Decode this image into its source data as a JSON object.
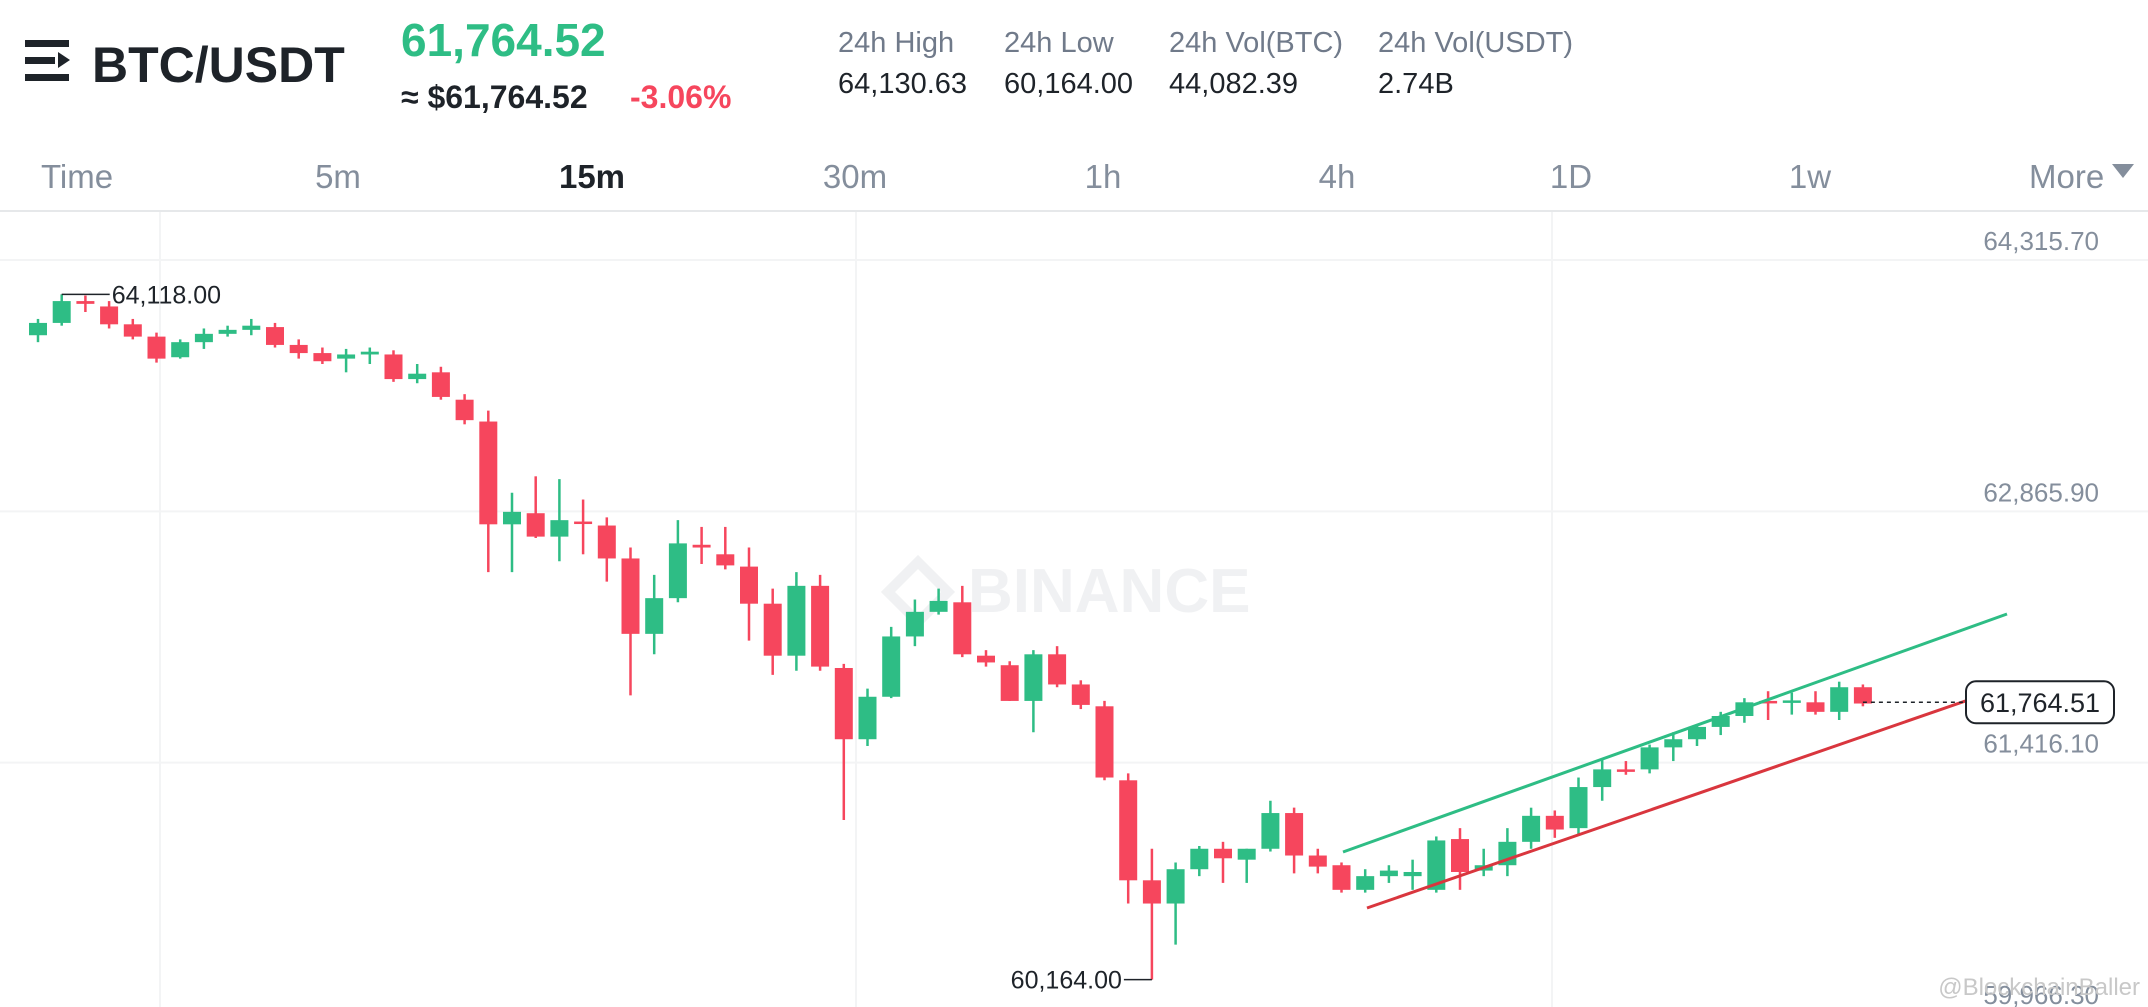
{
  "header": {
    "pair": "BTC/USDT",
    "price": "61,764.52",
    "approx": "≈ $61,764.52",
    "change": "-3.06%",
    "stats": [
      {
        "label": "24h High",
        "value": "64,130.63"
      },
      {
        "label": "24h Low",
        "value": "60,164.00"
      },
      {
        "label": "24h Vol(BTC)",
        "value": "44,082.39"
      },
      {
        "label": "24h Vol(USDT)",
        "value": "2.74B"
      }
    ]
  },
  "tabs": [
    "Time",
    "5m",
    "15m",
    "30m",
    "1h",
    "4h",
    "1D",
    "1w",
    "More"
  ],
  "active_tab": "15m",
  "watermark": "BINANCE",
  "credit": "@BlockchainBaller",
  "chart_data": {
    "type": "candlestick",
    "open": [
      63882,
      63953,
      64079,
      64048,
      63945,
      63874,
      63755,
      63842,
      63890,
      63913,
      63929,
      63826,
      63779,
      63747,
      63771,
      63771,
      63629,
      63668,
      63510,
      63384,
      62791,
      62855,
      62720,
      62807,
      62784,
      62594,
      62159,
      62365,
      62673,
      62618,
      62547,
      62333,
      62033,
      62436,
      61962,
      61551,
      61796,
      62144,
      62286,
      62341,
      62033,
      61978,
      61772,
      62041,
      61867,
      61741,
      61314,
      60737,
      60603,
      60801,
      60919,
      60856,
      60919,
      61125,
      60880,
      60824,
      60682,
      60761,
      60761,
      60682,
      60975,
      60793,
      60824,
      60959,
      61109,
      61038,
      61275,
      61377,
      61377,
      61504,
      61551,
      61622,
      61685,
      61772,
      61772,
      61764,
      61709,
      61851
    ],
    "high": [
      63976,
      64118,
      64111,
      64079,
      63976,
      63897,
      63858,
      63921,
      63937,
      63976,
      63953,
      63858,
      63811,
      63803,
      63811,
      63795,
      63716,
      63700,
      63542,
      63447,
      62973,
      63068,
      63052,
      62934,
      62831,
      62657,
      62499,
      62815,
      62776,
      62776,
      62657,
      62420,
      62515,
      62499,
      61986,
      61843,
      62199,
      62357,
      62420,
      62436,
      62065,
      62001,
      62065,
      62088,
      61891,
      61772,
      61354,
      60919,
      60840,
      60935,
      60959,
      60919,
      61196,
      61156,
      60919,
      60840,
      60801,
      60824,
      60856,
      60990,
      61038,
      60919,
      61038,
      61156,
      61140,
      61330,
      61433,
      61425,
      61520,
      61591,
      61630,
      61709,
      61788,
      61828,
      61820,
      61828,
      61883,
      61867
    ],
    "low": [
      63842,
      63937,
      64016,
      63921,
      63858,
      63724,
      63747,
      63803,
      63874,
      63882,
      63811,
      63747,
      63716,
      63668,
      63716,
      63613,
      63605,
      63510,
      63368,
      62515,
      62515,
      62712,
      62578,
      62618,
      62460,
      61804,
      62041,
      62341,
      62562,
      62531,
      62120,
      61922,
      61946,
      61946,
      61085,
      61512,
      61788,
      62088,
      62270,
      62025,
      61970,
      61772,
      61591,
      61851,
      61725,
      61314,
      60603,
      60164,
      60366,
      60761,
      60722,
      60722,
      60903,
      60777,
      60777,
      60666,
      60666,
      60722,
      60682,
      60666,
      60682,
      60761,
      60761,
      60919,
      60982,
      60998,
      61196,
      61346,
      61354,
      61425,
      61512,
      61575,
      61646,
      61662,
      61693,
      61693,
      61662,
      61741
    ],
    "close": [
      63953,
      64079,
      64063,
      63945,
      63874,
      63747,
      63842,
      63890,
      63913,
      63937,
      63826,
      63779,
      63732,
      63771,
      63787,
      63629,
      63660,
      63526,
      63392,
      62791,
      62863,
      62720,
      62815,
      62799,
      62594,
      62159,
      62365,
      62681,
      62657,
      62554,
      62333,
      62033,
      62436,
      61970,
      61551,
      61796,
      62144,
      62286,
      62349,
      62041,
      61994,
      61772,
      62041,
      61867,
      61749,
      61330,
      60737,
      60603,
      60801,
      60919,
      60864,
      60919,
      61125,
      60880,
      60816,
      60682,
      60761,
      60793,
      60785,
      60967,
      60785,
      60824,
      60959,
      61109,
      61030,
      61275,
      61377,
      61370,
      61504,
      61551,
      61622,
      61685,
      61764,
      61760,
      61775,
      61709,
      61851,
      61757
    ],
    "ylim": [
      60006,
      64593
    ],
    "yticks": [
      {
        "value": 64315.7,
        "label": "64,315.70"
      },
      {
        "value": 62865.9,
        "label": "62,865.90"
      },
      {
        "value": 61416.1,
        "label": "61,416.10"
      },
      {
        "value": 59966.3,
        "label": "59,966.30"
      }
    ],
    "grid": true,
    "up_color": "#2ebd85",
    "down_color": "#f6465d",
    "high_label": "64,118.00",
    "low_label": "60,164.00",
    "last_price": {
      "value": 61764.51,
      "label": "61,764.51"
    }
  }
}
